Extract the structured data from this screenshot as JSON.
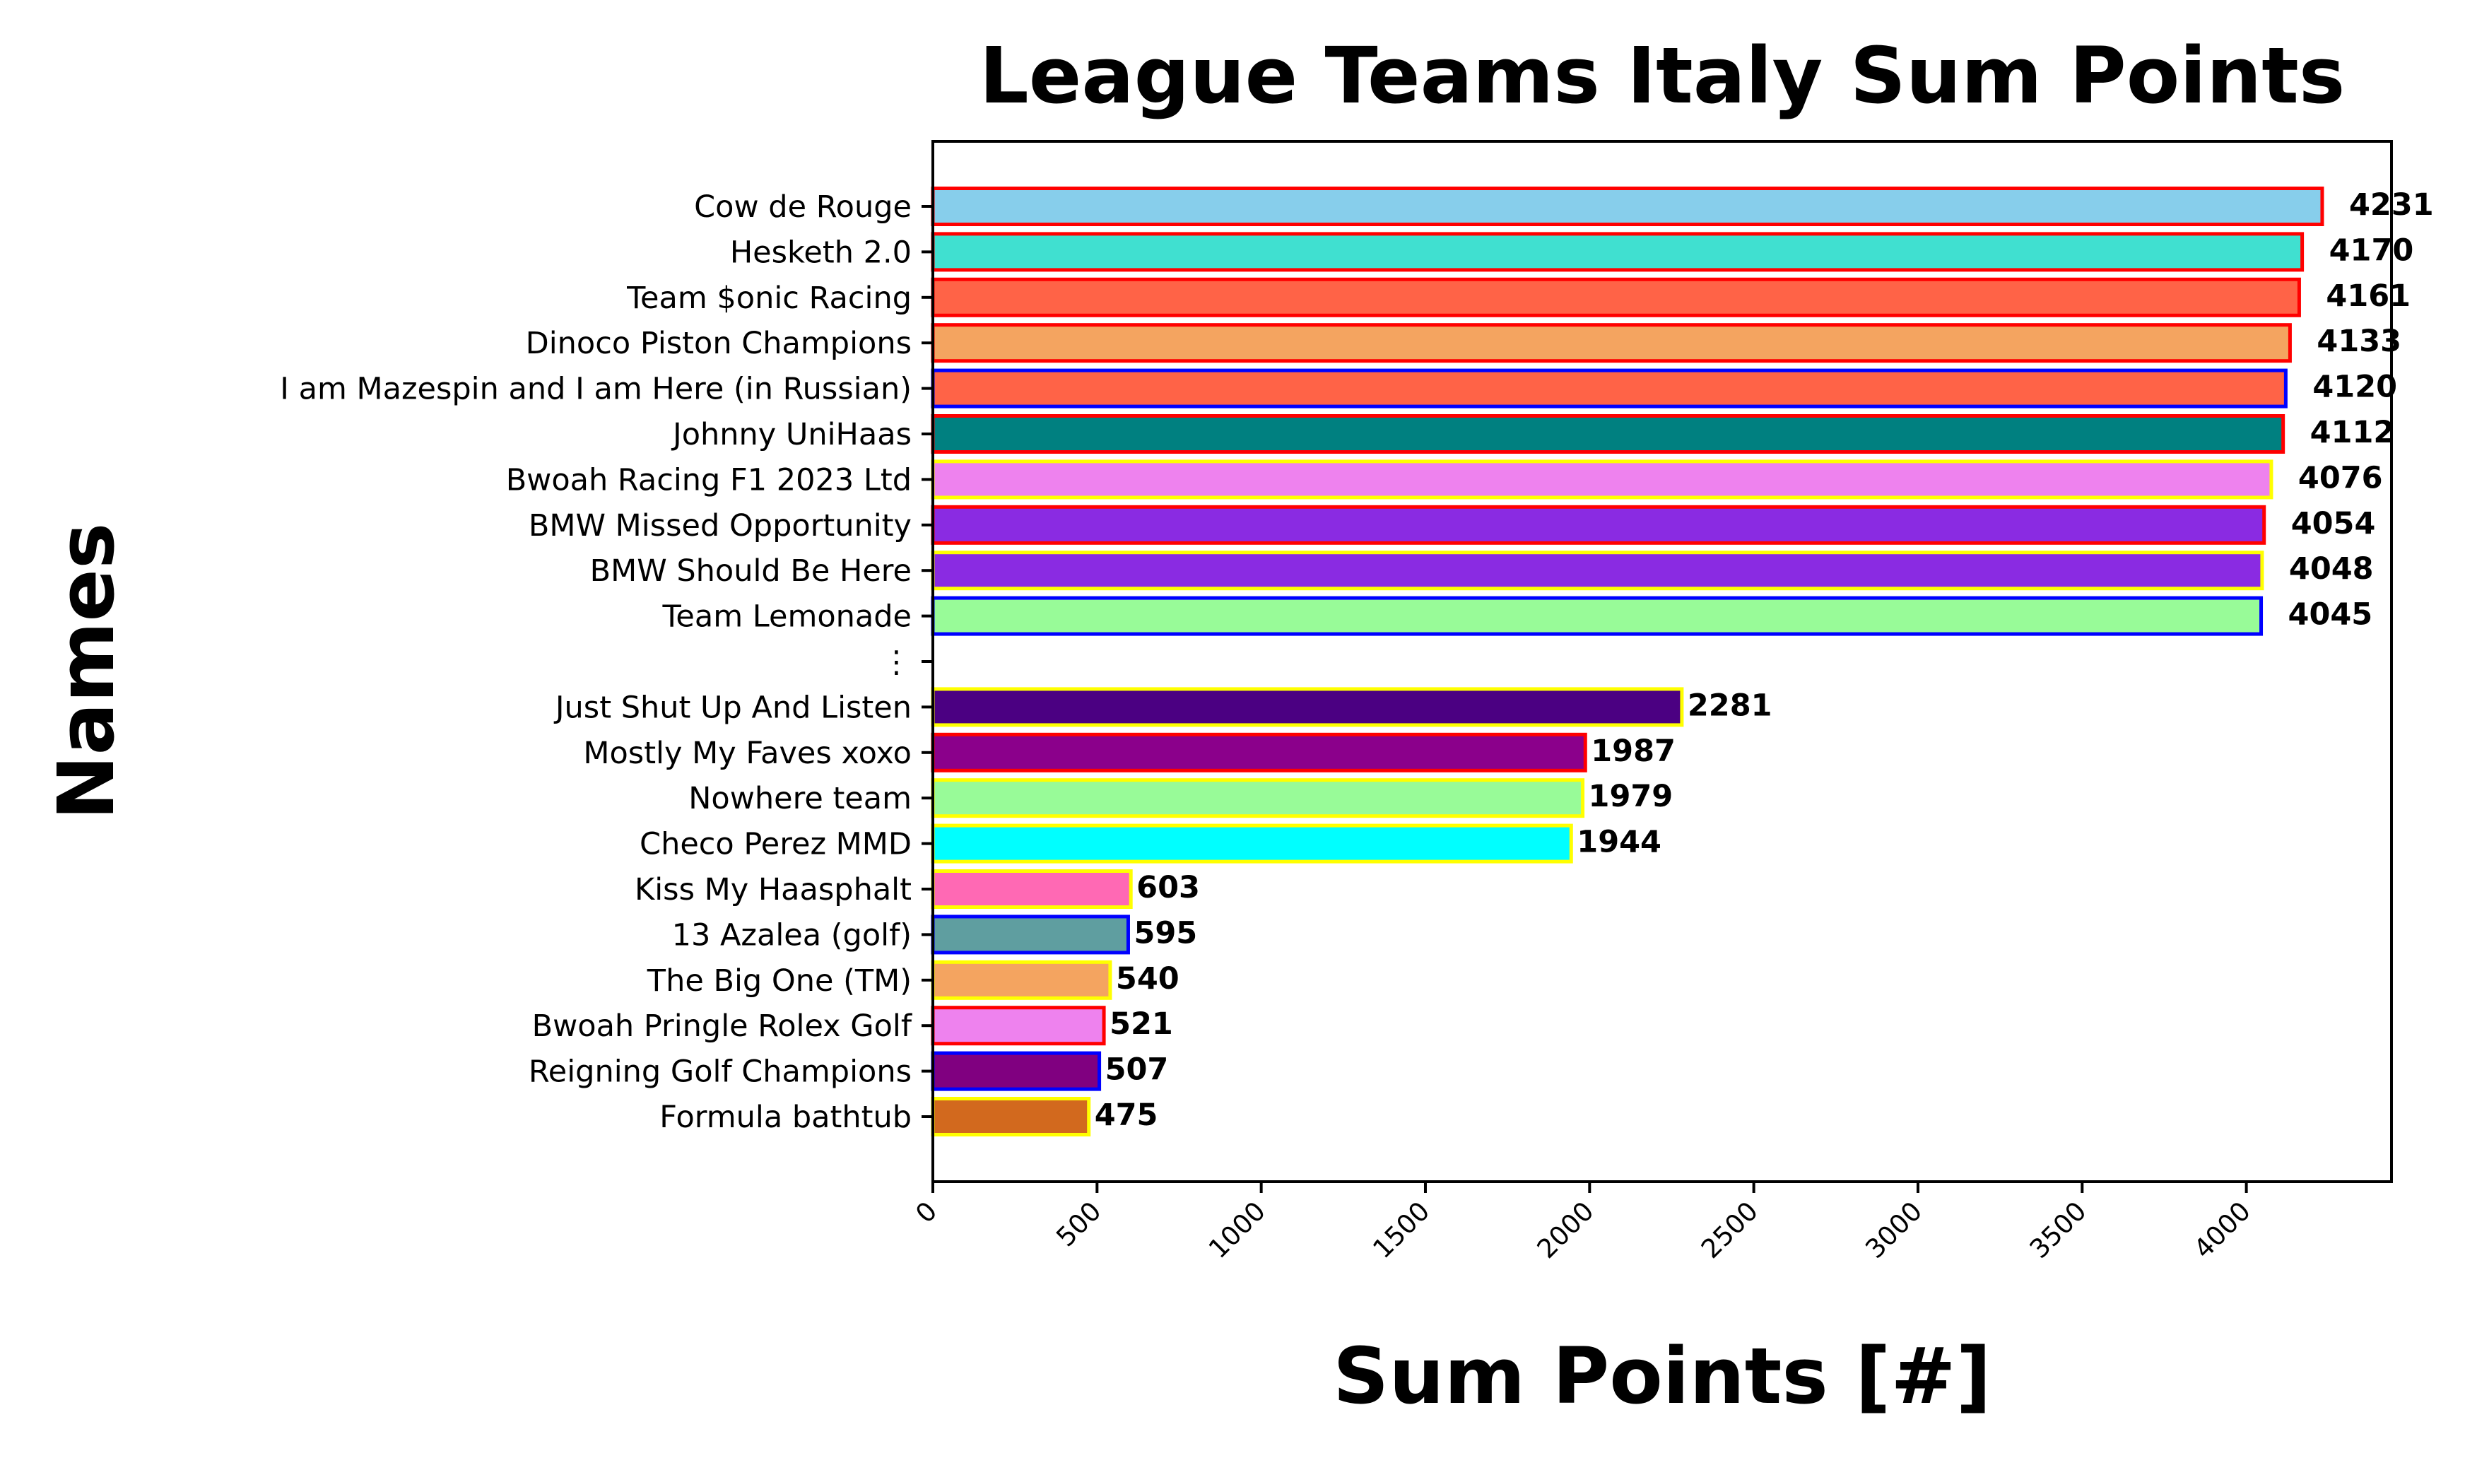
{
  "chart_data": {
    "type": "bar",
    "orientation": "horizontal",
    "title": "League Teams Italy Sum Points",
    "xlabel": "Sum Points [#]",
    "ylabel": "Names",
    "xlim": [
      0,
      4442
    ],
    "xticks": [
      0,
      500,
      1000,
      1500,
      2000,
      2500,
      3000,
      3500,
      4000
    ],
    "xtick_labels": [
      "0",
      "500",
      "1000",
      "1500",
      "2000",
      "2500",
      "3000",
      "3500",
      "4000"
    ],
    "grid": false,
    "categories": [
      "Cow de Rouge",
      "Hesketh 2.0",
      "Team $onic Racing",
      "Dinoco Piston Champions",
      "I am Mazespin and I am Here (in Russian)",
      "Johnny UniHaas",
      "Bwoah Racing F1 2023 Ltd",
      "BMW Missed Opportunity",
      "BMW Should Be Here",
      "Team Lemonade",
      "⋮",
      "Just Shut Up And Listen",
      "Mostly My Faves xoxo",
      "Nowhere team",
      "Checo Perez MMD",
      "Kiss My Haasphalt",
      "13 Azalea (golf)",
      "The Big One (TM)",
      "Bwoah Pringle Rolex Golf",
      "Reigning Golf Champions",
      "Formula bathtub"
    ],
    "values": [
      4231,
      4170,
      4161,
      4133,
      4120,
      4112,
      4076,
      4054,
      4048,
      4045,
      null,
      2281,
      1987,
      1979,
      1944,
      603,
      595,
      540,
      521,
      507,
      475
    ],
    "value_labels": [
      "4231",
      "4170",
      "4161",
      "4133",
      "4120",
      "4112",
      "4076",
      "4054",
      "4048",
      "4045",
      "",
      "2281",
      "1987",
      "1979",
      "1944",
      "603",
      "595",
      "540",
      "521",
      "507",
      "475"
    ],
    "fill_colors": [
      "#87CEEB",
      "#40E0D0",
      "#FF6347",
      "#F4A460",
      "#FF6347",
      "#008080",
      "#EE82EE",
      "#8A2BE2",
      "#8A2BE2",
      "#98FB98",
      null,
      "#4B0082",
      "#8B008B",
      "#98FB98",
      "#00FFFF",
      "#FF69B4",
      "#5F9EA0",
      "#F4A460",
      "#EE82EE",
      "#800080",
      "#D2691E"
    ],
    "edge_colors": [
      "#FF0000",
      "#FF0000",
      "#FF0000",
      "#FF0000",
      "#0000FF",
      "#FF0000",
      "#FFFF00",
      "#FF0000",
      "#FFFF00",
      "#0000FF",
      null,
      "#FFFF00",
      "#FF0000",
      "#FFFF00",
      "#FFFF00",
      "#FFFF00",
      "#0000FF",
      "#FFFF00",
      "#FF0000",
      "#0000FF",
      "#FFFF00"
    ]
  }
}
